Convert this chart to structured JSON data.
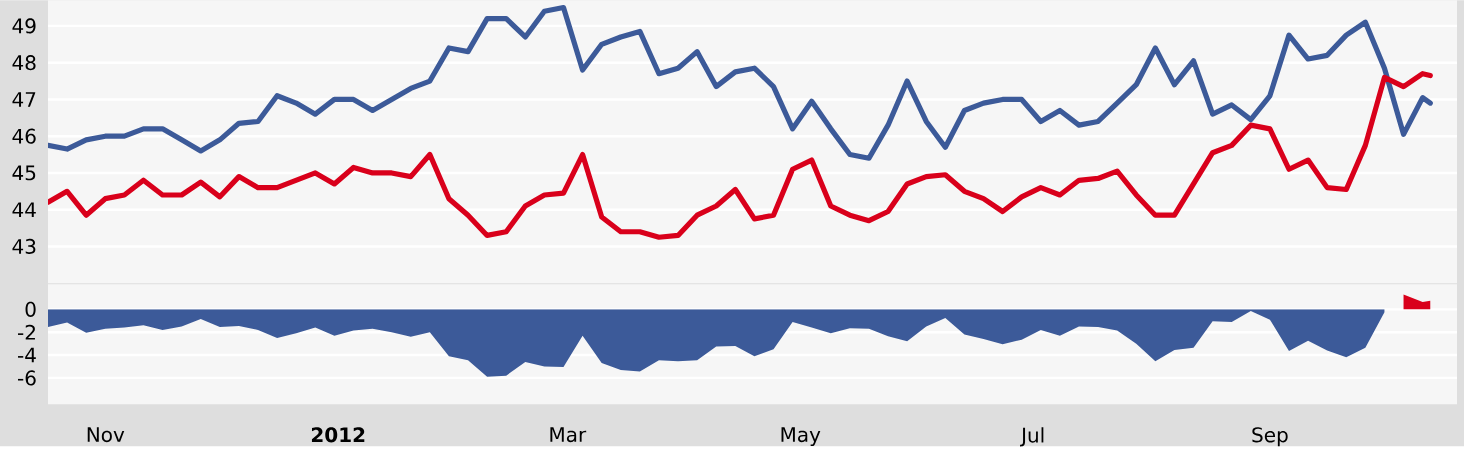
{
  "chart_data": [
    {
      "type": "line",
      "x": [
        "2011-10-17",
        "2011-10-22",
        "2011-10-27",
        "2011-11-01",
        "2011-11-06",
        "2011-11-11",
        "2011-11-16",
        "2011-11-21",
        "2011-11-26",
        "2011-12-01",
        "2011-12-06",
        "2011-12-11",
        "2011-12-16",
        "2011-12-21",
        "2011-12-26",
        "2011-12-31",
        "2012-01-05",
        "2012-01-10",
        "2012-01-15",
        "2012-01-20",
        "2012-01-25",
        "2012-01-30",
        "2012-02-04",
        "2012-02-09",
        "2012-02-14",
        "2012-02-19",
        "2012-02-24",
        "2012-02-29",
        "2012-03-05",
        "2012-03-10",
        "2012-03-15",
        "2012-03-20",
        "2012-03-25",
        "2012-03-30",
        "2012-04-04",
        "2012-04-09",
        "2012-04-14",
        "2012-04-19",
        "2012-04-24",
        "2012-04-29",
        "2012-05-04",
        "2012-05-09",
        "2012-05-14",
        "2012-05-19",
        "2012-05-24",
        "2012-05-29",
        "2012-06-03",
        "2012-06-08",
        "2012-06-13",
        "2012-06-18",
        "2012-06-23",
        "2012-06-28",
        "2012-07-03",
        "2012-07-08",
        "2012-07-13",
        "2012-07-18",
        "2012-07-23",
        "2012-07-28",
        "2012-08-02",
        "2012-08-07",
        "2012-08-12",
        "2012-08-17",
        "2012-08-22",
        "2012-08-27",
        "2012-09-01",
        "2012-09-06",
        "2012-09-11",
        "2012-09-16",
        "2012-09-21",
        "2012-09-26",
        "2012-10-01",
        "2012-10-06",
        "2012-10-11",
        "2012-10-13"
      ],
      "series": [
        {
          "color": "#3c5a99",
          "values": [
            45.75,
            45.65,
            45.9,
            46.0,
            46.0,
            46.2,
            46.2,
            45.9,
            45.6,
            45.9,
            46.35,
            46.4,
            47.1,
            46.9,
            46.6,
            47.0,
            47.0,
            46.7,
            47.0,
            47.3,
            47.5,
            48.4,
            48.3,
            49.2,
            49.2,
            48.7,
            49.4,
            49.5,
            47.8,
            48.5,
            48.7,
            48.85,
            47.7,
            47.85,
            48.3,
            47.35,
            47.75,
            47.85,
            47.35,
            46.2,
            46.95,
            46.2,
            45.5,
            45.4,
            46.3,
            47.5,
            46.4,
            45.7,
            46.7,
            46.9,
            47.0,
            47.0,
            46.4,
            46.7,
            46.3,
            46.4,
            46.9,
            47.4,
            48.4,
            47.4,
            48.05,
            46.6,
            46.85,
            46.45,
            47.1,
            48.75,
            48.1,
            48.2,
            48.75,
            49.1,
            47.85,
            46.05,
            47.05,
            46.9
          ]
        },
        {
          "color": "#d9001b",
          "values": [
            44.2,
            44.5,
            43.85,
            44.3,
            44.4,
            44.8,
            44.4,
            44.4,
            44.75,
            44.35,
            44.9,
            44.6,
            44.6,
            44.8,
            45.0,
            44.7,
            45.15,
            45.0,
            45.0,
            44.9,
            45.5,
            44.3,
            43.85,
            43.3,
            43.4,
            44.1,
            44.4,
            44.45,
            45.5,
            43.8,
            43.4,
            43.4,
            43.25,
            43.3,
            43.85,
            44.1,
            44.55,
            43.75,
            43.85,
            45.1,
            45.35,
            44.1,
            43.85,
            43.7,
            43.95,
            44.7,
            44.9,
            44.95,
            44.5,
            44.3,
            43.95,
            44.35,
            44.6,
            44.4,
            44.8,
            44.85,
            45.05,
            44.4,
            43.85,
            43.85,
            44.7,
            45.55,
            45.75,
            46.3,
            46.2,
            45.1,
            45.35,
            44.6,
            44.55,
            45.75,
            47.6,
            47.35,
            47.7,
            47.65
          ]
        }
      ],
      "xlim": [
        "2011-10-17",
        "2012-10-20"
      ],
      "ylim": [
        42.0,
        49.7
      ],
      "yticks": [
        43,
        44,
        45,
        46,
        47,
        48,
        49
      ],
      "grid": "y",
      "tick_labels": "y"
    },
    {
      "type": "area",
      "x": [
        "2011-10-17",
        "2011-10-22",
        "2011-10-27",
        "2011-11-01",
        "2011-11-06",
        "2011-11-11",
        "2011-11-16",
        "2011-11-21",
        "2011-11-26",
        "2011-12-01",
        "2011-12-06",
        "2011-12-11",
        "2011-12-16",
        "2011-12-21",
        "2011-12-26",
        "2011-12-31",
        "2012-01-05",
        "2012-01-10",
        "2012-01-15",
        "2012-01-20",
        "2012-01-25",
        "2012-01-30",
        "2012-02-04",
        "2012-02-09",
        "2012-02-14",
        "2012-02-19",
        "2012-02-24",
        "2012-02-29",
        "2012-03-05",
        "2012-03-10",
        "2012-03-15",
        "2012-03-20",
        "2012-03-25",
        "2012-03-30",
        "2012-04-04",
        "2012-04-09",
        "2012-04-14",
        "2012-04-19",
        "2012-04-24",
        "2012-04-29",
        "2012-05-04",
        "2012-05-09",
        "2012-05-14",
        "2012-05-19",
        "2012-05-24",
        "2012-05-29",
        "2012-06-03",
        "2012-06-08",
        "2012-06-13",
        "2012-06-18",
        "2012-06-23",
        "2012-06-28",
        "2012-07-03",
        "2012-07-08",
        "2012-07-13",
        "2012-07-18",
        "2012-07-23",
        "2012-07-28",
        "2012-08-02",
        "2012-08-07",
        "2012-08-12",
        "2012-08-17",
        "2012-08-22",
        "2012-08-27",
        "2012-09-01",
        "2012-09-06",
        "2012-09-11",
        "2012-09-16",
        "2012-09-21",
        "2012-09-26",
        "2012-10-01",
        "2012-10-06",
        "2012-10-11",
        "2012-10-13"
      ],
      "series": [
        {
          "color": "#3c5a99",
          "values": [
            -1.55,
            -1.15,
            -2.05,
            -1.7,
            -1.6,
            -1.4,
            -1.8,
            -1.5,
            -0.85,
            -1.55,
            -1.45,
            -1.8,
            -2.5,
            -2.1,
            -1.6,
            -2.3,
            -1.85,
            -1.7,
            -2.0,
            -2.4,
            -2.0,
            -4.1,
            -4.45,
            -5.9,
            -5.8,
            -4.6,
            -5.0,
            -5.05,
            -2.3,
            -4.7,
            -5.3,
            -5.45,
            -4.45,
            -4.55,
            -4.45,
            -3.25,
            -3.2,
            -4.1,
            -3.5,
            -1.1,
            -1.6,
            -2.1,
            -1.65,
            -1.7,
            -2.35,
            -2.8,
            -1.5,
            -0.75,
            -2.2,
            -2.6,
            -3.05,
            -2.65,
            -1.8,
            -2.3,
            -1.5,
            -1.55,
            -1.85,
            -3.0,
            -4.55,
            -3.55,
            -3.35,
            -1.05,
            -1.1,
            -0.15,
            -0.9,
            -3.65,
            -2.75,
            -3.6,
            -4.2,
            -3.35,
            -0.25,
            null,
            null,
            null
          ]
        },
        {
          "color": "#d9001b",
          "values": [
            null,
            null,
            null,
            null,
            null,
            null,
            null,
            null,
            null,
            null,
            null,
            null,
            null,
            null,
            null,
            null,
            null,
            null,
            null,
            null,
            null,
            null,
            null,
            null,
            null,
            null,
            null,
            null,
            null,
            null,
            null,
            null,
            null,
            null,
            null,
            null,
            null,
            null,
            null,
            null,
            null,
            null,
            null,
            null,
            null,
            null,
            null,
            null,
            null,
            null,
            null,
            null,
            null,
            null,
            null,
            null,
            null,
            null,
            null,
            null,
            null,
            null,
            null,
            null,
            null,
            null,
            null,
            null,
            null,
            null,
            null,
            1.3,
            0.65,
            0.75
          ]
        }
      ],
      "xlim": [
        "2011-10-17",
        "2012-10-20"
      ],
      "xticks": [
        {
          "value": "2011-11-01",
          "label": "Nov"
        },
        {
          "value": "2012-01-01",
          "label": "2012"
        },
        {
          "value": "2012-03-01",
          "label": "Mar"
        },
        {
          "value": "2012-05-01",
          "label": "May"
        },
        {
          "value": "2012-07-01",
          "label": "Jul"
        },
        {
          "value": "2012-09-01",
          "label": "Sep"
        }
      ],
      "ylim": [
        -8.3,
        2.2
      ],
      "yticks": [
        0,
        -2,
        -4,
        -6
      ],
      "grid": "y"
    }
  ]
}
